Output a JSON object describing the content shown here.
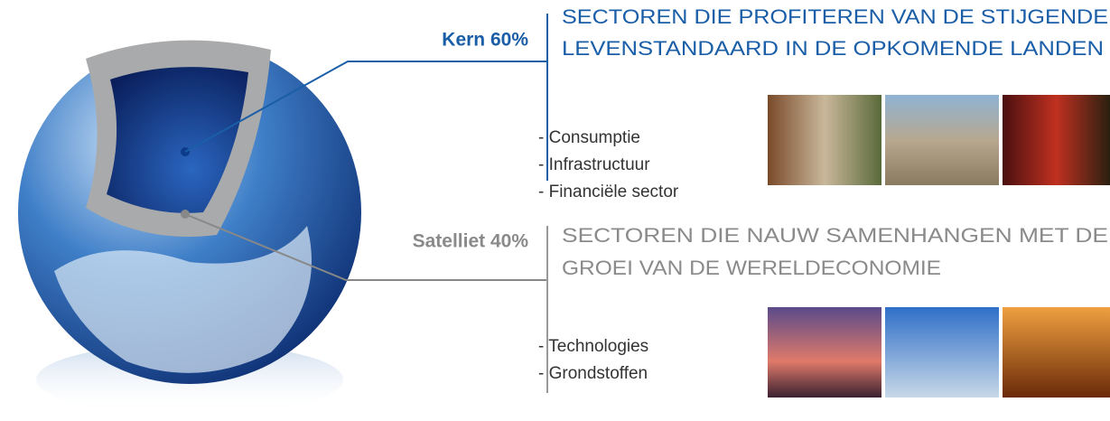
{
  "core": {
    "label": "Kern 60%",
    "heading": [
      "SECTOREN DIE PROFITEREN VAN DE STIJGENDE",
      "LEVENSTANDAARD IN DE OPKOMENDE LANDEN"
    ],
    "items": [
      "- Consumptie",
      "- Infrastructuur",
      "- Financiële sector"
    ]
  },
  "satellite": {
    "label": "Satelliet 40%",
    "heading": [
      "SECTOREN DIE NAUW SAMENHANGEN MET DE",
      "GROEI VAN DE WERELDECONOMIE"
    ],
    "items": [
      "- Technologies",
      "- Grondstoffen"
    ]
  }
}
